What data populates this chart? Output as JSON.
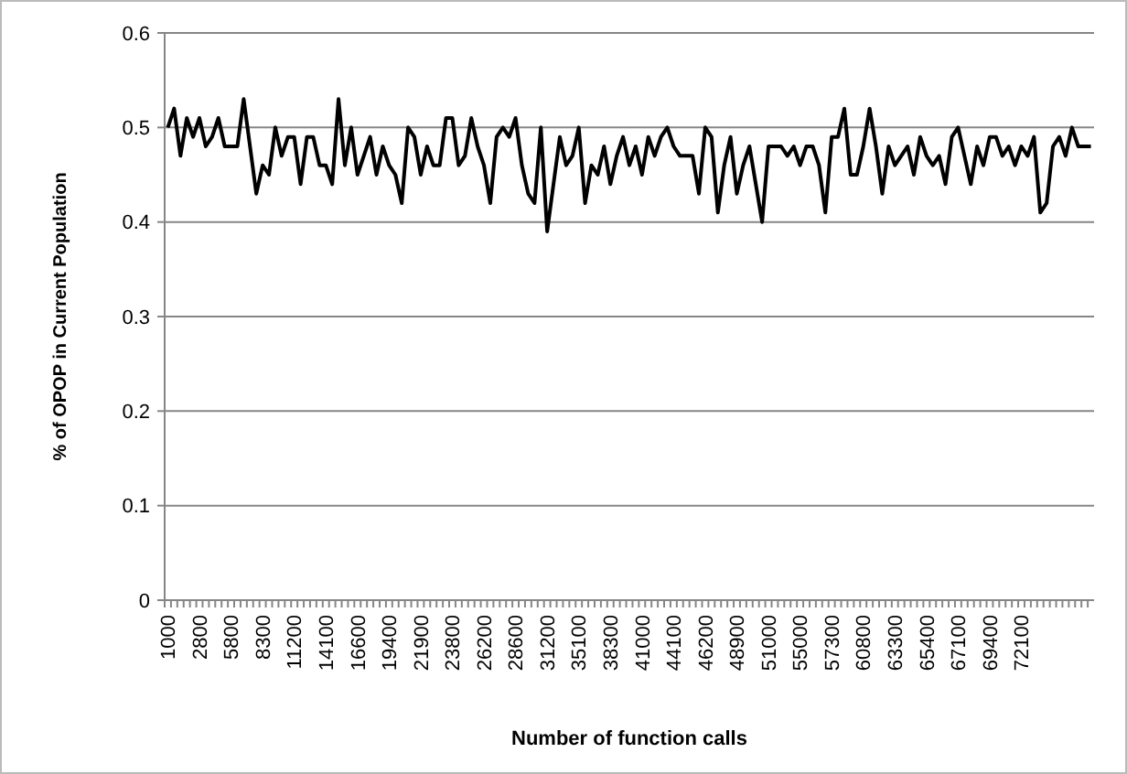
{
  "chart_data": {
    "type": "line",
    "xlabel": "Number of function calls",
    "ylabel": "% of OPOP in Current Population",
    "categories": [
      "1000",
      null,
      null,
      null,
      null,
      "2800",
      null,
      null,
      null,
      null,
      "5800",
      null,
      null,
      null,
      null,
      "8300",
      null,
      null,
      null,
      null,
      "11200",
      null,
      null,
      null,
      null,
      "14100",
      null,
      null,
      null,
      null,
      "16600",
      null,
      null,
      null,
      null,
      "19400",
      null,
      null,
      null,
      null,
      "21900",
      null,
      null,
      null,
      null,
      "23800",
      null,
      null,
      null,
      null,
      "26200",
      null,
      null,
      null,
      null,
      "28600",
      null,
      null,
      null,
      null,
      "31200",
      null,
      null,
      null,
      null,
      "35100",
      null,
      null,
      null,
      null,
      "38300",
      null,
      null,
      null,
      null,
      "41000",
      null,
      null,
      null,
      null,
      "44100",
      null,
      null,
      null,
      null,
      "46200",
      null,
      null,
      null,
      null,
      "48900",
      null,
      null,
      null,
      null,
      "51000",
      null,
      null,
      null,
      null,
      "55000",
      null,
      null,
      null,
      null,
      "57300",
      null,
      null,
      null,
      null,
      "60800",
      null,
      null,
      null,
      null,
      "63300",
      null,
      null,
      null,
      null,
      "65400",
      null,
      null,
      null,
      null,
      "67100",
      null,
      null,
      null,
      null,
      "69400",
      null,
      null,
      null,
      null,
      "72100",
      null,
      null,
      null,
      null,
      null,
      null,
      null,
      null,
      null,
      null,
      null
    ],
    "series": [
      {
        "color": "#000000",
        "values": [
          0.5,
          0.52,
          0.47,
          0.51,
          0.49,
          0.51,
          0.48,
          0.49,
          0.51,
          0.48,
          0.48,
          0.48,
          0.53,
          0.48,
          0.43,
          0.46,
          0.45,
          0.5,
          0.47,
          0.49,
          0.49,
          0.44,
          0.49,
          0.49,
          0.46,
          0.46,
          0.44,
          0.53,
          0.46,
          0.5,
          0.45,
          0.47,
          0.49,
          0.45,
          0.48,
          0.46,
          0.45,
          0.42,
          0.5,
          0.49,
          0.45,
          0.48,
          0.46,
          0.46,
          0.51,
          0.51,
          0.46,
          0.47,
          0.51,
          0.48,
          0.46,
          0.42,
          0.49,
          0.5,
          0.49,
          0.51,
          0.46,
          0.43,
          0.42,
          0.5,
          0.39,
          0.44,
          0.49,
          0.46,
          0.47,
          0.5,
          0.42,
          0.46,
          0.45,
          0.48,
          0.44,
          0.47,
          0.49,
          0.46,
          0.48,
          0.45,
          0.49,
          0.47,
          0.49,
          0.5,
          0.48,
          0.47,
          0.47,
          0.47,
          0.43,
          0.5,
          0.49,
          0.41,
          0.46,
          0.49,
          0.43,
          0.46,
          0.48,
          0.44,
          0.4,
          0.48,
          0.48,
          0.48,
          0.47,
          0.48,
          0.46,
          0.48,
          0.48,
          0.46,
          0.41,
          0.49,
          0.49,
          0.52,
          0.45,
          0.45,
          0.48,
          0.52,
          0.48,
          0.43,
          0.48,
          0.46,
          0.47,
          0.48,
          0.45,
          0.49,
          0.47,
          0.46,
          0.47,
          0.44,
          0.49,
          0.5,
          0.47,
          0.44,
          0.48,
          0.46,
          0.49,
          0.49,
          0.47,
          0.48,
          0.46,
          0.48,
          0.47,
          0.49,
          0.41,
          0.42,
          0.48,
          0.49,
          0.47,
          0.5,
          0.48,
          0.48,
          0.48
        ]
      }
    ],
    "ylim": [
      0,
      0.6
    ],
    "yticks": [
      0,
      0.1,
      0.2,
      0.3,
      0.4,
      0.5,
      0.6
    ],
    "grid": "y",
    "marker": "none",
    "line_style": "solid"
  }
}
